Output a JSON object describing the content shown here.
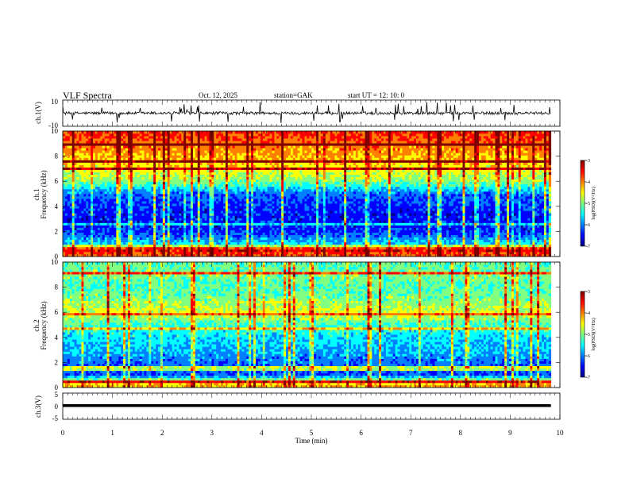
{
  "header": {
    "title": "VLF  Spectra",
    "date": "Oct. 12, 2025",
    "station": "station=GAK",
    "start_ut": "start  UT  =    12: 10: 0"
  },
  "colors": {
    "frame": "#000000",
    "background": "#ffffff",
    "colormap": [
      "#00007f",
      "#0000ff",
      "#0080ff",
      "#00ffff",
      "#80ff80",
      "#ffff00",
      "#ff8000",
      "#ff0000",
      "#7f0000"
    ]
  },
  "chart_data": [
    {
      "type": "line",
      "panel": "ch1-waveform",
      "ylabel": "ch.1(V)",
      "ylim": [
        -10,
        10
      ],
      "ytick_labels": [
        "10",
        "-10"
      ],
      "approx_level": 0,
      "x_range": [
        0,
        9.82
      ]
    },
    {
      "type": "heatmap",
      "panel": "ch1-spectrogram",
      "ylabel_top": "ch.1",
      "ylabel": "Frequency  (kHz)",
      "ylim": [
        0,
        10
      ],
      "ytick_labels": [
        "0",
        "2",
        "4",
        "6",
        "8",
        "10"
      ],
      "x_range": [
        0,
        9.82
      ],
      "colorbar": {
        "label": "log(PSD)(V²/Hz)",
        "range": [
          -7,
          -3
        ],
        "tick_labels": [
          "-3",
          "-4",
          "-5",
          "-6",
          "-7"
        ]
      },
      "band_profile": [
        {
          "freq": 0.2,
          "level": -3.8
        },
        {
          "freq": 0.6,
          "level": -3.3
        },
        {
          "freq": 1.0,
          "level": -5.6
        },
        {
          "freq": 2.0,
          "level": -6.4
        },
        {
          "freq": 3.0,
          "level": -6.5
        },
        {
          "freq": 4.0,
          "level": -6.4
        },
        {
          "freq": 5.0,
          "level": -6.1
        },
        {
          "freq": 6.0,
          "level": -5.0
        },
        {
          "freq": 7.0,
          "level": -4.5
        },
        {
          "freq": 8.0,
          "level": -4.2
        },
        {
          "freq": 9.0,
          "level": -3.9
        },
        {
          "freq": 10.0,
          "level": -3.6
        }
      ]
    },
    {
      "type": "heatmap",
      "panel": "ch2-spectrogram",
      "ylabel_top": "ch.2",
      "ylabel": "Frequency  (kHz)",
      "ylim": [
        0,
        10
      ],
      "ytick_labels": [
        "0",
        "2",
        "4",
        "6",
        "8",
        "10"
      ],
      "x_range": [
        0,
        9.82
      ],
      "colorbar": {
        "label": "log(PSD)(V²/Hz)",
        "range": [
          -7,
          -3
        ],
        "tick_labels": [
          "-3",
          "-4",
          "-5",
          "-6",
          "-7"
        ]
      },
      "band_profile": [
        {
          "freq": 0.2,
          "level": -4.2
        },
        {
          "freq": 0.6,
          "level": -4.8
        },
        {
          "freq": 1.0,
          "level": -6.2
        },
        {
          "freq": 2.0,
          "level": -6.1
        },
        {
          "freq": 3.0,
          "level": -5.8
        },
        {
          "freq": 4.0,
          "level": -5.6
        },
        {
          "freq": 5.0,
          "level": -5.3
        },
        {
          "freq": 6.0,
          "level": -4.6
        },
        {
          "freq": 7.0,
          "level": -5.0
        },
        {
          "freq": 8.0,
          "level": -5.2
        },
        {
          "freq": 9.0,
          "level": -5.0
        },
        {
          "freq": 10.0,
          "level": -5.2
        }
      ]
    },
    {
      "type": "line",
      "panel": "ch3-waveform",
      "ylabel": "ch.3(V)",
      "ylim": [
        -5,
        5
      ],
      "ytick_labels": [
        "5",
        "0",
        "-5"
      ],
      "approx_level": 0,
      "x_range": [
        0,
        9.82
      ]
    }
  ],
  "x_axis": {
    "label": "Time  (min)",
    "range": [
      0,
      10
    ],
    "tick_labels": [
      "0",
      "1",
      "2",
      "3",
      "4",
      "5",
      "6",
      "7",
      "8",
      "9",
      "10"
    ]
  }
}
